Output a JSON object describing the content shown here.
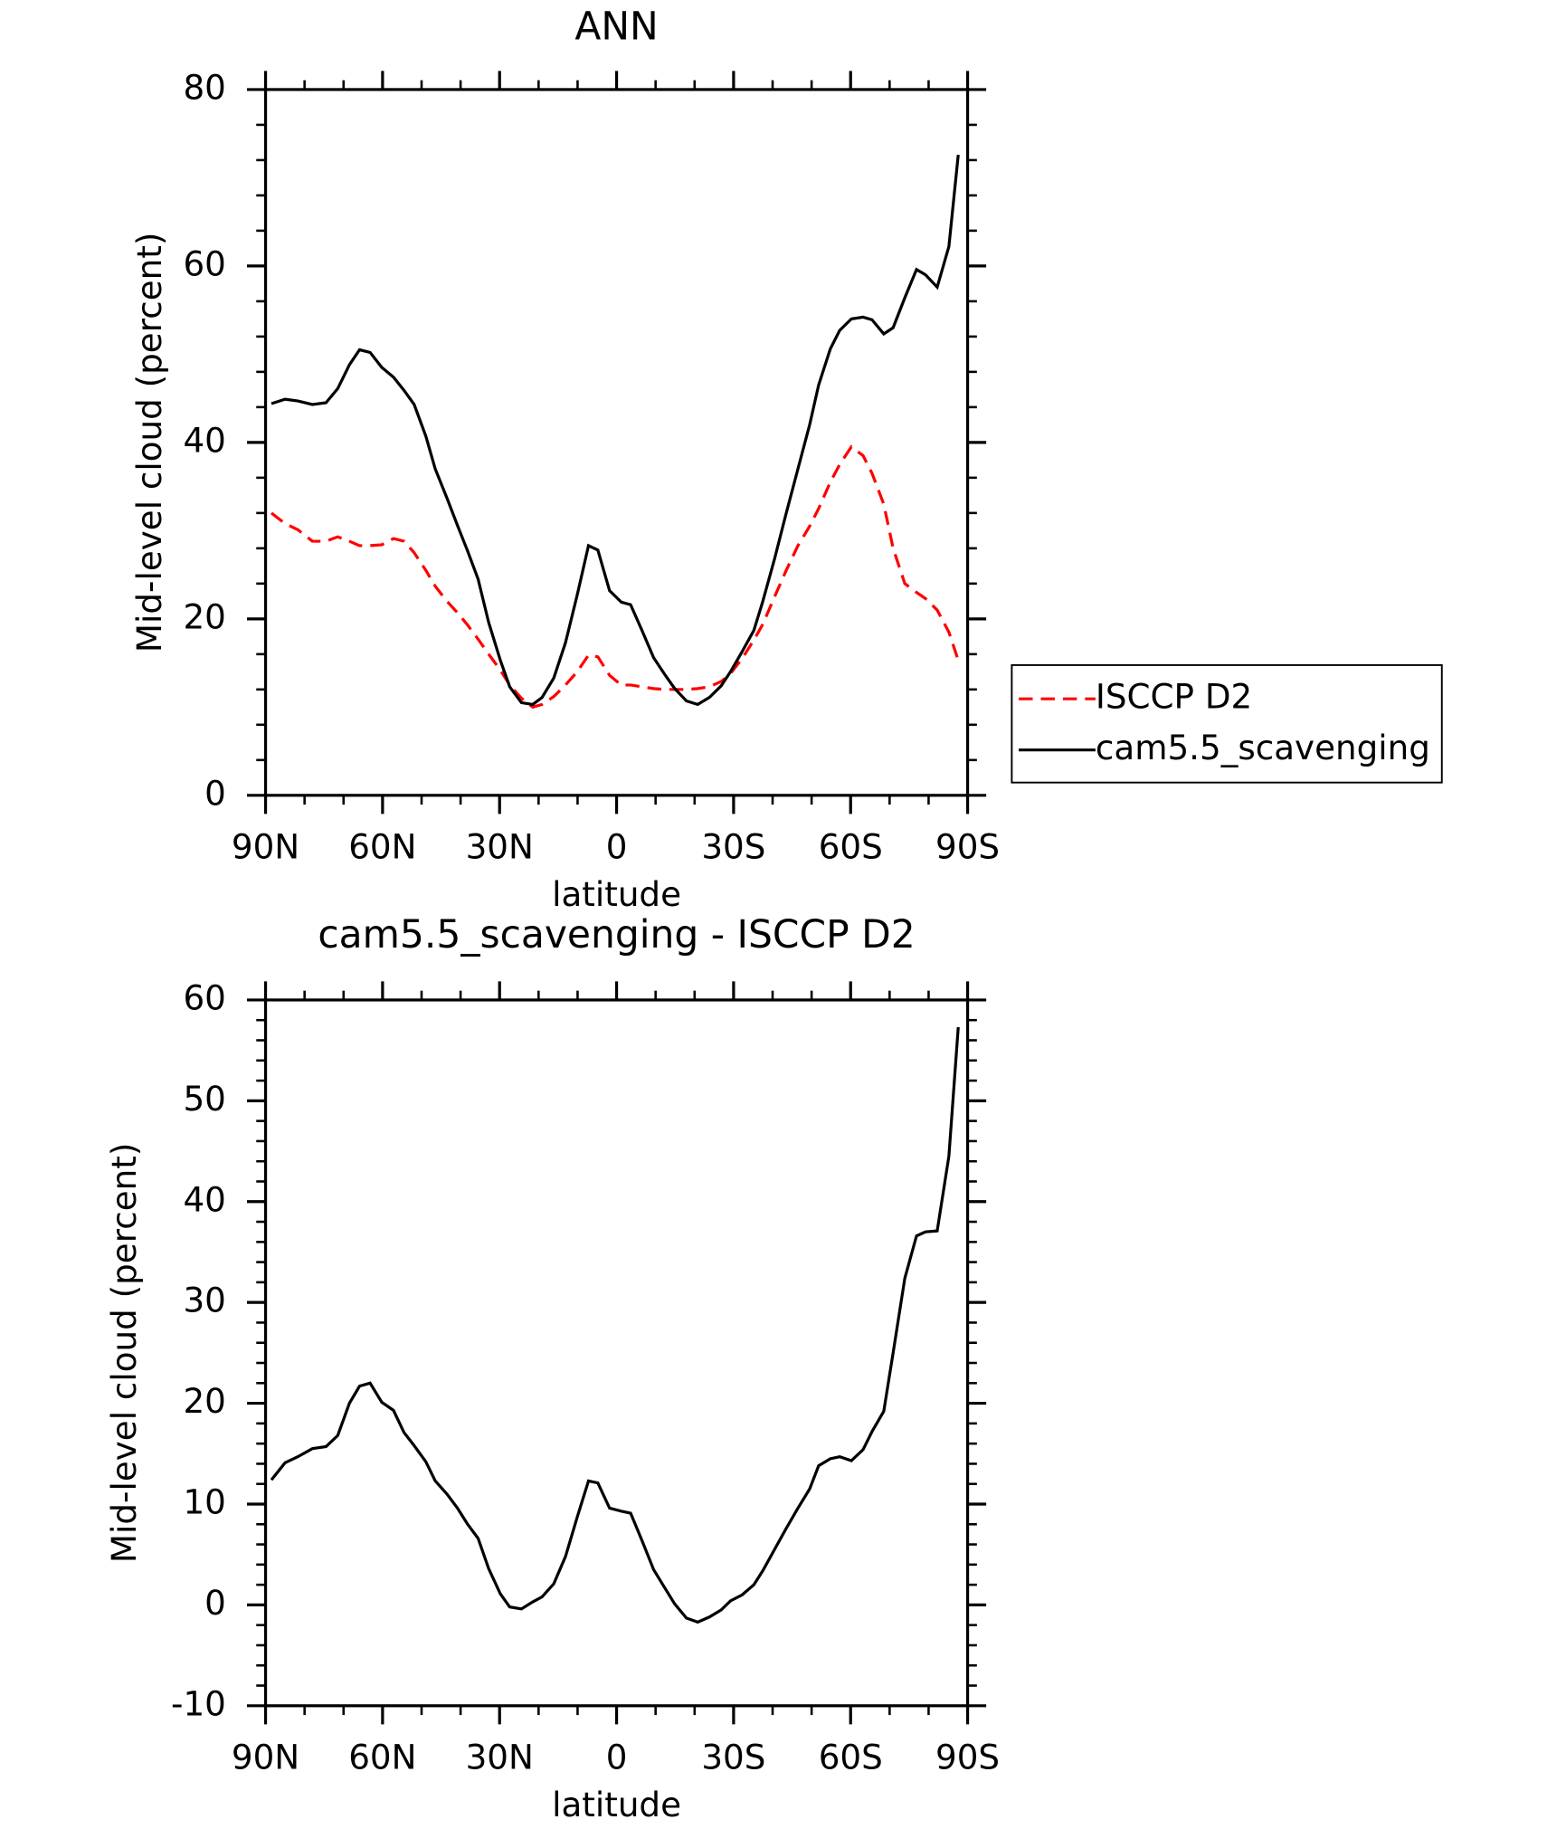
{
  "chart_data": [
    {
      "type": "line",
      "title": "ANN",
      "xlabel": "latitude",
      "ylabel": "Mid-level cloud (percent)",
      "x": [
        88.5,
        85,
        81.7,
        78,
        74.5,
        71.5,
        68.5,
        65.9,
        63.2,
        60.2,
        57.2,
        54.5,
        51.9,
        48.9,
        46.5,
        43.5,
        40.8,
        38.2,
        35.5,
        32.8,
        29.8,
        27.4,
        24.4,
        21.5,
        19.1,
        16.1,
        13.1,
        10.1,
        7.2,
        4.8,
        1.8,
        -1.2,
        -3.6,
        -6.5,
        -9.5,
        -12.5,
        -14.9,
        -17.9,
        -20.8,
        -23.8,
        -26.8,
        -29.2,
        -32.2,
        -35.2,
        -37.5,
        -40.5,
        -43.5,
        -46.5,
        -49.5,
        -51.8,
        -54.8,
        -57.2,
        -60.2,
        -63.2,
        -65.5,
        -68.5,
        -70.9,
        -73.9,
        -76.9,
        -79.2,
        -82.2,
        -85.2,
        -87.6
      ],
      "series": [
        {
          "name": "ISCCP D2",
          "color": "#ff0000",
          "dashed": true,
          "values": [
            32.0,
            30.8,
            30.1,
            28.8,
            28.8,
            29.3,
            28.8,
            28.3,
            28.3,
            28.4,
            29.1,
            28.8,
            27.5,
            25.5,
            23.7,
            22.0,
            20.7,
            19.3,
            17.7,
            16.0,
            14.2,
            12.5,
            11.0,
            10.0,
            10.3,
            11.2,
            12.5,
            14.0,
            15.9,
            15.7,
            13.6,
            12.5,
            12.5,
            12.3,
            12.1,
            12.0,
            12.0,
            12.0,
            12.1,
            12.3,
            12.9,
            13.8,
            15.5,
            17.6,
            19.4,
            22.5,
            25.5,
            28.3,
            30.5,
            32.5,
            35.5,
            37.5,
            39.5,
            38.5,
            36.5,
            33.0,
            28.0,
            24.0,
            23.0,
            22.3,
            21.0,
            18.5,
            15.3
          ]
        },
        {
          "name": "cam5.5_scavenging",
          "color": "#000000",
          "dashed": false,
          "values": [
            44.4,
            44.9,
            44.7,
            44.3,
            44.5,
            46.1,
            48.8,
            50.5,
            50.2,
            48.5,
            47.4,
            45.9,
            44.3,
            40.7,
            37.0,
            33.7,
            30.6,
            27.7,
            24.5,
            19.6,
            15.3,
            12.3,
            10.5,
            10.3,
            11.1,
            13.3,
            17.3,
            22.7,
            28.3,
            27.8,
            23.2,
            21.9,
            21.6,
            18.7,
            15.6,
            13.6,
            12.1,
            10.7,
            10.3,
            11.1,
            12.4,
            14.0,
            16.3,
            18.7,
            22.0,
            26.8,
            32.0,
            37.0,
            42.0,
            46.5,
            50.6,
            52.7,
            54.0,
            54.2,
            53.9,
            52.3,
            53.0,
            56.4,
            59.6,
            59.0,
            57.6,
            62.2,
            72.6
          ]
        }
      ],
      "xlim": [
        90,
        -90
      ],
      "xticks": [
        {
          "value": 90,
          "label": "90N"
        },
        {
          "value": 60,
          "label": "60N"
        },
        {
          "value": 30,
          "label": "30N"
        },
        0,
        {
          "value": -30,
          "label": "30S"
        },
        {
          "value": -60,
          "label": "60S"
        },
        {
          "value": -90,
          "label": "90S"
        }
      ],
      "ylim": [
        0,
        80
      ],
      "yticks": [
        0,
        20,
        40,
        60,
        80
      ],
      "legend": "right"
    },
    {
      "type": "line",
      "title": "cam5.5_scavenging - ISCCP D2",
      "xlabel": "latitude",
      "ylabel": "Mid-level cloud (percent)",
      "x": [
        88.5,
        85,
        81.7,
        78,
        74.5,
        71.5,
        68.5,
        65.9,
        63.2,
        60.2,
        57.2,
        54.5,
        51.9,
        48.9,
        46.5,
        43.5,
        40.8,
        38.2,
        35.5,
        32.8,
        29.8,
        27.4,
        24.4,
        21.5,
        19.1,
        16.1,
        13.1,
        10.1,
        7.2,
        4.8,
        1.8,
        -1.2,
        -3.6,
        -6.5,
        -9.5,
        -12.5,
        -14.9,
        -17.9,
        -20.8,
        -23.8,
        -26.8,
        -29.2,
        -32.2,
        -35.2,
        -37.5,
        -40.5,
        -43.5,
        -46.5,
        -49.5,
        -51.8,
        -54.8,
        -57.2,
        -60.2,
        -63.2,
        -65.5,
        -68.5,
        -70.9,
        -73.9,
        -76.9,
        -79.2,
        -82.2,
        -85.2,
        -87.6
      ],
      "series": [
        {
          "color": "#000000",
          "dashed": false,
          "values": [
            12.4,
            14.1,
            14.7,
            15.5,
            15.7,
            16.8,
            20.0,
            21.7,
            22.0,
            20.1,
            19.3,
            17.1,
            15.8,
            14.2,
            12.3,
            11.0,
            9.6,
            8.0,
            6.6,
            3.6,
            1.1,
            -0.2,
            -0.4,
            0.3,
            0.8,
            2.1,
            4.8,
            8.7,
            12.3,
            12.1,
            9.6,
            9.3,
            9.1,
            6.4,
            3.5,
            1.6,
            0.1,
            -1.3,
            -1.7,
            -1.2,
            -0.5,
            0.4,
            1.0,
            2.0,
            3.4,
            5.5,
            7.6,
            9.6,
            11.5,
            13.8,
            14.5,
            14.7,
            14.3,
            15.4,
            17.2,
            19.2,
            25.0,
            32.4,
            36.6,
            37.0,
            37.1,
            44.5,
            57.3
          ]
        }
      ],
      "xlim": [
        90,
        -90
      ],
      "xticks": [
        {
          "value": 90,
          "label": "90N"
        },
        {
          "value": 60,
          "label": "60N"
        },
        {
          "value": 30,
          "label": "30N"
        },
        0,
        {
          "value": -30,
          "label": "30S"
        },
        {
          "value": -60,
          "label": "60S"
        },
        {
          "value": -90,
          "label": "90S"
        }
      ],
      "ylim": [
        -10,
        60
      ],
      "yticks": [
        -10,
        0,
        10,
        20,
        30,
        40,
        50,
        60
      ]
    }
  ]
}
